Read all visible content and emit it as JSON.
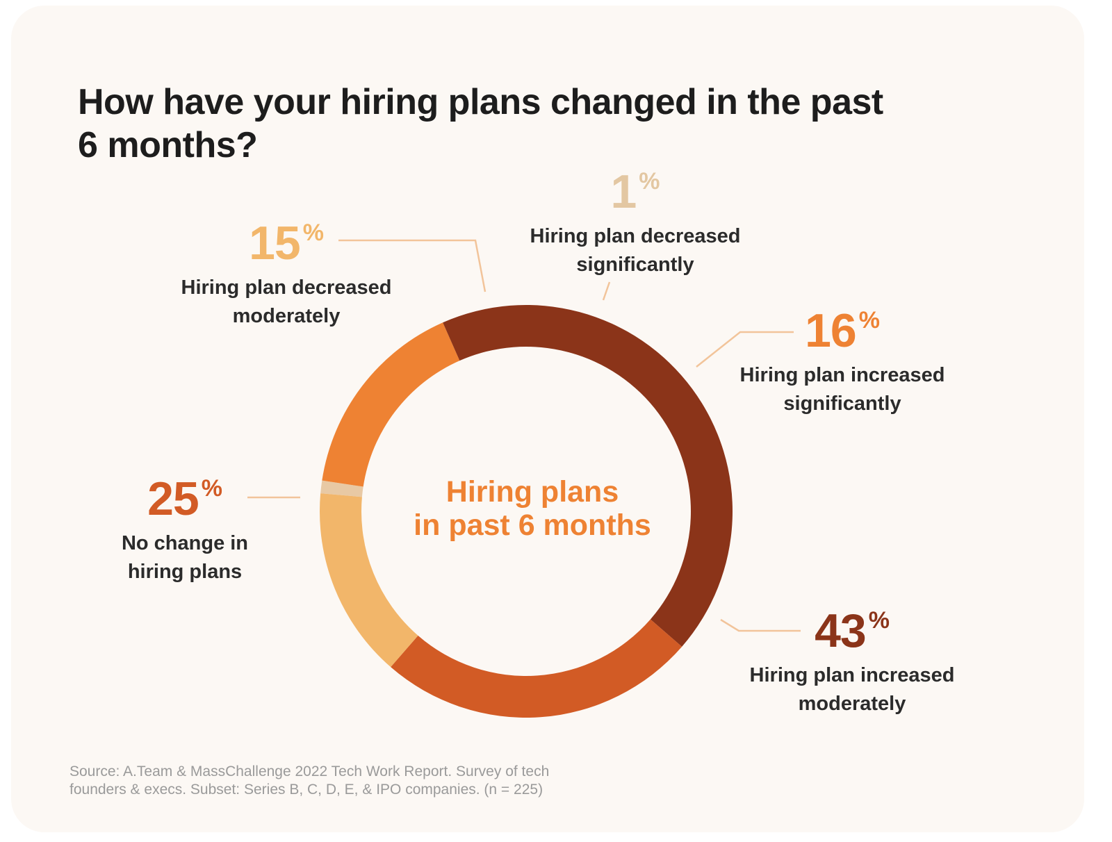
{
  "title": "How have your hiring plans changed in the past 6 months?",
  "chart_data": {
    "type": "pie",
    "donut": true,
    "title": "How have your hiring plans changed in the past 6 months?",
    "center_label": "Hiring plans in past 6 months",
    "slices": [
      {
        "label": "Hiring plan decreased significantly",
        "value": 1,
        "color": "#e8c9a4"
      },
      {
        "label": "Hiring plan increased significantly",
        "value": 16,
        "color": "#ee8233"
      },
      {
        "label": "Hiring plan increased moderately",
        "value": 43,
        "color": "#8b3419"
      },
      {
        "label": "No change in hiring plans",
        "value": 25,
        "color": "#d25b25"
      },
      {
        "label": "Hiring plan decreased moderately",
        "value": 15,
        "color": "#f2b66a"
      }
    ],
    "unit": "%"
  },
  "center_lines": [
    "Hiring plans",
    "in past 6 months"
  ],
  "callouts": {
    "c1": {
      "value": "1",
      "percent": "%",
      "lines": [
        "Hiring plan decreased",
        "significantly"
      ],
      "color": "#e3c7a2"
    },
    "c16": {
      "value": "16",
      "percent": "%",
      "lines": [
        "Hiring plan increased",
        "significantly"
      ],
      "color": "#ee8233"
    },
    "c43": {
      "value": "43",
      "percent": "%",
      "lines": [
        "Hiring plan increased",
        "moderately"
      ],
      "color": "#8b3419"
    },
    "c25": {
      "value": "25",
      "percent": "%",
      "lines": [
        "No change in",
        "hiring plans"
      ],
      "color": "#d25b25"
    },
    "c15": {
      "value": "15",
      "percent": "%",
      "lines": [
        "Hiring plan decreased",
        "moderately"
      ],
      "color": "#f2b66a"
    }
  },
  "leader_color": "#f2c49a",
  "source": {
    "line1": "Source: A.Team & MassChallenge 2022 Tech Work Report. Survey of tech",
    "line2": "founders & execs. Subset: Series B, C, D, E, & IPO companies. (n = 225)"
  }
}
